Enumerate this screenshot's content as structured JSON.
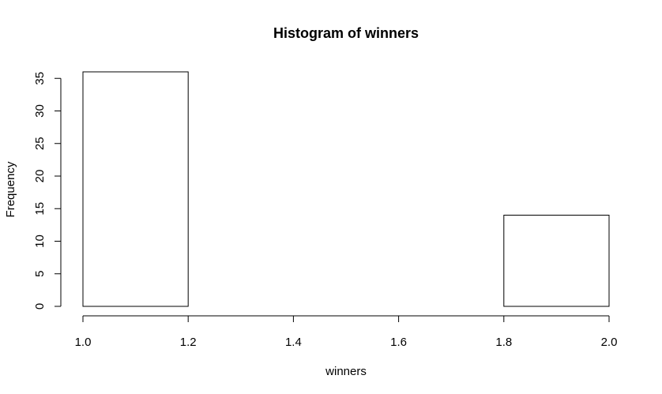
{
  "chart_data": {
    "type": "bar",
    "title": "Histogram of winners",
    "xlabel": "winners",
    "ylabel": "Frequency",
    "bins": [
      {
        "from": 1.0,
        "to": 1.2,
        "count": 36
      },
      {
        "from": 1.2,
        "to": 1.4,
        "count": 0
      },
      {
        "from": 1.4,
        "to": 1.6,
        "count": 0
      },
      {
        "from": 1.6,
        "to": 1.8,
        "count": 0
      },
      {
        "from": 1.8,
        "to": 2.0,
        "count": 14
      }
    ],
    "xlim": [
      1.0,
      2.0
    ],
    "ylim": [
      0,
      36
    ],
    "xticks": [
      "1.0",
      "1.2",
      "1.4",
      "1.6",
      "1.8",
      "2.0"
    ],
    "yticks": [
      "0",
      "5",
      "10",
      "15",
      "20",
      "25",
      "30",
      "35"
    ],
    "grid": false,
    "legend": "none"
  }
}
